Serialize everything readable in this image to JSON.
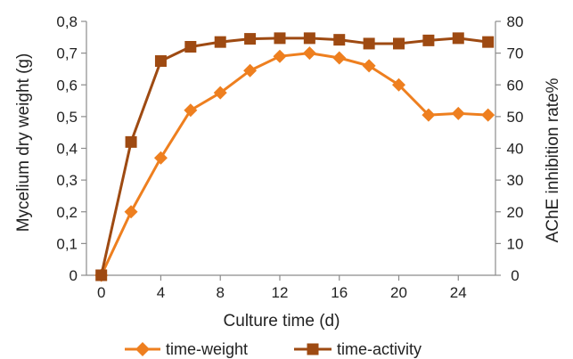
{
  "chart_data": {
    "type": "line",
    "xlabel": "Culture time (d)",
    "ylabel_left": "Mycelium dry weight (g)",
    "ylabel_right": "AChE inhibition rate%",
    "x_ticks": [
      "0",
      "4",
      "8",
      "12",
      "16",
      "20",
      "24"
    ],
    "x_tick_values": [
      0,
      4,
      8,
      12,
      16,
      20,
      24
    ],
    "xlim": [
      -1,
      26.5
    ],
    "y_left": {
      "ylim": [
        0,
        0.8
      ],
      "ticks": [
        "0",
        "0,1",
        "0,2",
        "0,3",
        "0,4",
        "0,5",
        "0,6",
        "0,7",
        "0,8"
      ],
      "tick_values": [
        0,
        0.1,
        0.2,
        0.3,
        0.4,
        0.5,
        0.6,
        0.7,
        0.8
      ]
    },
    "y_right": {
      "ylim": [
        0,
        80
      ],
      "ticks": [
        "0",
        "10",
        "20",
        "30",
        "40",
        "50",
        "60",
        "70",
        "80"
      ],
      "tick_values": [
        0,
        10,
        20,
        30,
        40,
        50,
        60,
        70,
        80
      ]
    },
    "grid": false,
    "legend_position": "bottom",
    "series": [
      {
        "name": "time-weight",
        "axis": "left",
        "color": "#ee7f1f",
        "marker": "diamond",
        "x": [
          0,
          2,
          4,
          6,
          8,
          10,
          12,
          14,
          16,
          18,
          20,
          22,
          24,
          26
        ],
        "values": [
          0,
          0.2,
          0.37,
          0.52,
          0.575,
          0.645,
          0.69,
          0.7,
          0.685,
          0.66,
          0.6,
          0.505,
          0.51,
          0.505
        ]
      },
      {
        "name": "time-activity",
        "axis": "right",
        "color": "#9e4a12",
        "marker": "square",
        "x": [
          0,
          2,
          4,
          6,
          8,
          10,
          12,
          14,
          16,
          18,
          20,
          22,
          24,
          26
        ],
        "values": [
          0,
          42,
          67.5,
          72,
          73.5,
          74.5,
          74.7,
          74.7,
          74.2,
          73,
          73,
          74,
          74.7,
          73.5
        ]
      }
    ]
  }
}
